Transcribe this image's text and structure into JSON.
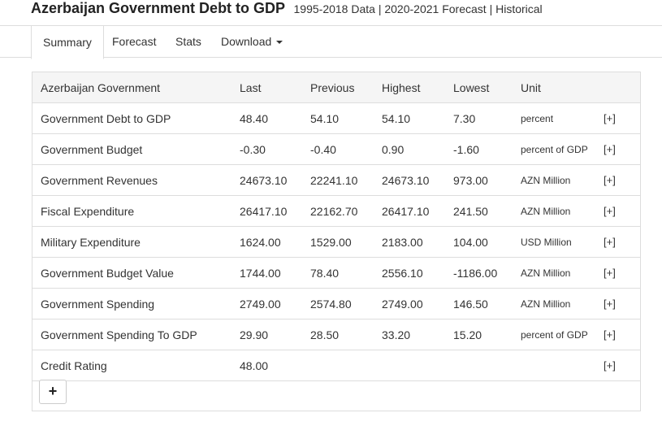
{
  "header": {
    "title": "Azerbaijan Government Debt to GDP",
    "links": [
      "1995-2018 Data",
      "2020-2021 Forecast",
      "Historical"
    ]
  },
  "tabs": [
    {
      "label": "Summary",
      "active": true
    },
    {
      "label": "Forecast",
      "active": false
    },
    {
      "label": "Stats",
      "active": false
    },
    {
      "label": "Download",
      "active": false
    }
  ],
  "table": {
    "columns": [
      "Azerbaijan Government",
      "Last",
      "Previous",
      "Highest",
      "Lowest",
      "Unit",
      ""
    ],
    "rows": [
      {
        "name": "Government Debt to GDP",
        "last": "48.40",
        "previous": "54.10",
        "highest": "54.10",
        "lowest": "7.30",
        "unit": "percent",
        "action": "[+]"
      },
      {
        "name": "Government Budget",
        "last": "-0.30",
        "previous": "-0.40",
        "highest": "0.90",
        "lowest": "-1.60",
        "unit": "percent of GDP",
        "action": "[+]"
      },
      {
        "name": "Government Revenues",
        "last": "24673.10",
        "previous": "22241.10",
        "highest": "24673.10",
        "lowest": "973.00",
        "unit": "AZN Million",
        "action": "[+]"
      },
      {
        "name": "Fiscal Expenditure",
        "last": "26417.10",
        "previous": "22162.70",
        "highest": "26417.10",
        "lowest": "241.50",
        "unit": "AZN Million",
        "action": "[+]"
      },
      {
        "name": "Military Expenditure",
        "last": "1624.00",
        "previous": "1529.00",
        "highest": "2183.00",
        "lowest": "104.00",
        "unit": "USD Million",
        "action": "[+]"
      },
      {
        "name": "Government Budget Value",
        "last": "1744.00",
        "previous": "78.40",
        "highest": "2556.10",
        "lowest": "-1186.00",
        "unit": "AZN Million",
        "action": "[+]"
      },
      {
        "name": "Government Spending",
        "last": "2749.00",
        "previous": "2574.80",
        "highest": "2749.00",
        "lowest": "146.50",
        "unit": "AZN Million",
        "action": "[+]"
      },
      {
        "name": "Government Spending To GDP",
        "last": "29.90",
        "previous": "28.50",
        "highest": "33.20",
        "lowest": "15.20",
        "unit": "percent of GDP",
        "action": "[+]"
      },
      {
        "name": "Credit Rating",
        "last": "48.00",
        "previous": "",
        "highest": "",
        "lowest": "",
        "unit": "",
        "action": "[+]"
      }
    ],
    "add_button": "+"
  }
}
